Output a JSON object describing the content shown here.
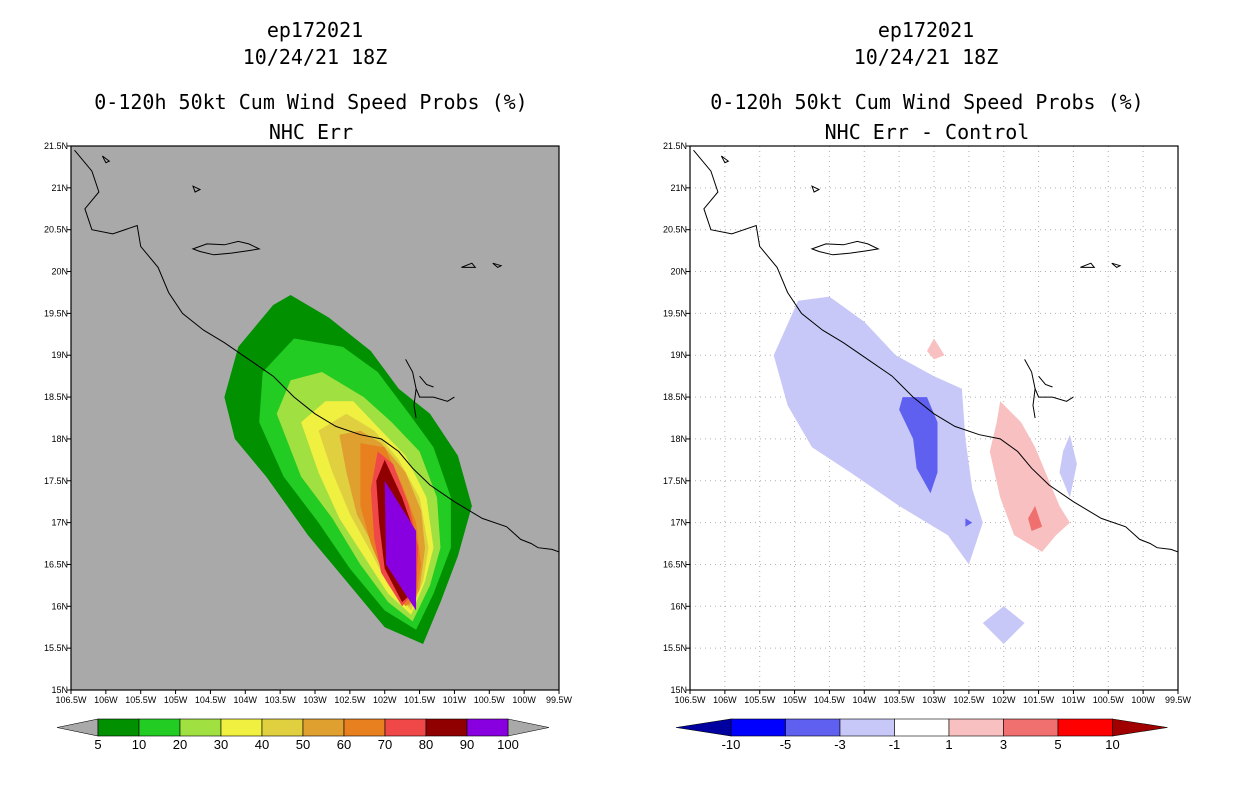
{
  "chart_data": [
    {
      "type": "contour-map",
      "title_lines": [
        "ep172021",
        "10/24/21 18Z",
        "0-120h 50kt Cum Wind Speed Probs (%)",
        "NHC Err"
      ],
      "x_ticks": [
        "106.5W",
        "106W",
        "105.5W",
        "105W",
        "104.5W",
        "104W",
        "103.5W",
        "103W",
        "102.5W",
        "102W",
        "101.5W",
        "101W",
        "100.5W",
        "100W",
        "99.5W"
      ],
      "y_ticks": [
        "15N",
        "15.5N",
        "16N",
        "16.5N",
        "17N",
        "17.5N",
        "18N",
        "18.5N",
        "19N",
        "19.5N",
        "20N",
        "20.5N",
        "21N",
        "21.5N"
      ],
      "xlim": [
        -106.5,
        -99.5
      ],
      "ylim": [
        15,
        21.5
      ],
      "background_color": "#a9a9a9",
      "grid": false,
      "levels": [
        "5",
        "10",
        "20",
        "30",
        "40",
        "50",
        "60",
        "70",
        "80",
        "90",
        "100"
      ],
      "colors": [
        "#009000",
        "#22cc22",
        "#a0e040",
        "#f0f040",
        "#e0d040",
        "#e0a030",
        "#e88020",
        "#f04848",
        "#900000",
        "#8800e0"
      ],
      "contours": [
        {
          "level": 5,
          "color": "#009000",
          "points": [
            [
              -104.3,
              18.5
            ],
            [
              -104.1,
              19.1
            ],
            [
              -103.6,
              19.6
            ],
            [
              -103.35,
              19.72
            ],
            [
              -102.8,
              19.45
            ],
            [
              -102.2,
              19.05
            ],
            [
              -101.8,
              18.6
            ],
            [
              -101.35,
              18.3
            ],
            [
              -100.95,
              17.8
            ],
            [
              -100.75,
              17.2
            ],
            [
              -100.95,
              16.6
            ],
            [
              -101.2,
              16.05
            ],
            [
              -101.45,
              15.55
            ],
            [
              -102.0,
              15.75
            ],
            [
              -102.6,
              16.35
            ],
            [
              -103.1,
              16.85
            ],
            [
              -103.7,
              17.55
            ],
            [
              -104.15,
              18.0
            ]
          ]
        },
        {
          "level": 10,
          "color": "#22cc22",
          "points": [
            [
              -103.8,
              18.2
            ],
            [
              -103.75,
              18.8
            ],
            [
              -103.3,
              19.2
            ],
            [
              -102.6,
              19.1
            ],
            [
              -102.1,
              18.8
            ],
            [
              -101.65,
              18.3
            ],
            [
              -101.3,
              17.9
            ],
            [
              -101.05,
              17.3
            ],
            [
              -101.05,
              16.7
            ],
            [
              -101.3,
              16.15
            ],
            [
              -101.55,
              15.72
            ],
            [
              -102.0,
              15.95
            ],
            [
              -102.5,
              16.45
            ],
            [
              -102.95,
              17.0
            ],
            [
              -103.45,
              17.55
            ]
          ]
        },
        {
          "level": 20,
          "color": "#a0e040",
          "points": [
            [
              -103.55,
              18.3
            ],
            [
              -103.35,
              18.7
            ],
            [
              -102.9,
              18.8
            ],
            [
              -102.3,
              18.5
            ],
            [
              -101.9,
              18.2
            ],
            [
              -101.5,
              17.85
            ],
            [
              -101.25,
              17.3
            ],
            [
              -101.2,
              16.7
            ],
            [
              -101.35,
              16.25
            ],
            [
              -101.6,
              15.82
            ],
            [
              -101.95,
              16.05
            ],
            [
              -102.35,
              16.5
            ],
            [
              -102.75,
              17.05
            ],
            [
              -103.2,
              17.55
            ]
          ]
        },
        {
          "level": 30,
          "color": "#f0f040",
          "points": [
            [
              -103.2,
              18.2
            ],
            [
              -102.85,
              18.45
            ],
            [
              -102.45,
              18.45
            ],
            [
              -102.05,
              18.1
            ],
            [
              -101.7,
              17.8
            ],
            [
              -101.4,
              17.3
            ],
            [
              -101.3,
              16.7
            ],
            [
              -101.42,
              16.3
            ],
            [
              -101.62,
              15.9
            ],
            [
              -101.95,
              16.15
            ],
            [
              -102.3,
              16.6
            ],
            [
              -102.65,
              17.05
            ],
            [
              -102.95,
              17.6
            ]
          ]
        },
        {
          "level": 40,
          "color": "#e0d040",
          "points": [
            [
              -102.95,
              18.1
            ],
            [
              -102.55,
              18.3
            ],
            [
              -102.15,
              18.1
            ],
            [
              -101.8,
              17.75
            ],
            [
              -101.5,
              17.3
            ],
            [
              -101.37,
              16.7
            ],
            [
              -101.45,
              16.3
            ],
            [
              -101.62,
              15.95
            ],
            [
              -101.95,
              16.25
            ],
            [
              -102.2,
              16.65
            ],
            [
              -102.5,
              17.1
            ],
            [
              -102.75,
              17.6
            ]
          ]
        },
        {
          "level": 50,
          "color": "#e0a030",
          "points": [
            [
              -102.65,
              18.05
            ],
            [
              -102.35,
              18.1
            ],
            [
              -102.05,
              17.95
            ],
            [
              -101.7,
              17.6
            ],
            [
              -101.48,
              17.15
            ],
            [
              -101.42,
              16.7
            ],
            [
              -101.5,
              16.2
            ],
            [
              -101.65,
              16.0
            ],
            [
              -101.95,
              16.3
            ],
            [
              -102.15,
              16.7
            ],
            [
              -102.4,
              17.1
            ],
            [
              -102.55,
              17.6
            ]
          ]
        },
        {
          "level": 60,
          "color": "#e88020",
          "points": [
            [
              -102.35,
              17.95
            ],
            [
              -102.0,
              17.9
            ],
            [
              -101.75,
              17.45
            ],
            [
              -101.55,
              17.0
            ],
            [
              -101.48,
              16.5
            ],
            [
              -101.55,
              16.1
            ],
            [
              -101.7,
              16.0
            ],
            [
              -102.0,
              16.35
            ],
            [
              -102.2,
              16.75
            ],
            [
              -102.35,
              17.2
            ]
          ]
        },
        {
          "level": 70,
          "color": "#f04848",
          "points": [
            [
              -102.1,
              17.85
            ],
            [
              -101.88,
              17.7
            ],
            [
              -101.65,
              17.2
            ],
            [
              -101.52,
              16.7
            ],
            [
              -101.55,
              16.2
            ],
            [
              -101.75,
              16.0
            ],
            [
              -102.05,
              16.4
            ],
            [
              -102.15,
              16.8
            ],
            [
              -102.2,
              17.4
            ]
          ]
        },
        {
          "level": 80,
          "color": "#900000",
          "points": [
            [
              -102.0,
              17.75
            ],
            [
              -101.75,
              17.3
            ],
            [
              -101.58,
              16.9
            ],
            [
              -101.55,
              16.4
            ],
            [
              -101.55,
              16.2
            ],
            [
              -101.75,
              16.05
            ],
            [
              -102.0,
              16.45
            ],
            [
              -102.08,
              17.0
            ],
            [
              -102.12,
              17.5
            ]
          ]
        },
        {
          "level": 90,
          "color": "#8800e0",
          "points": [
            [
              -102.0,
              17.5
            ],
            [
              -101.55,
              16.9
            ],
            [
              -101.55,
              15.95
            ],
            [
              -101.98,
              16.5
            ]
          ]
        }
      ],
      "colorbar": {
        "labels": [
          "5",
          "10",
          "20",
          "30",
          "40",
          "50",
          "60",
          "70",
          "80",
          "90",
          "100"
        ]
      }
    },
    {
      "type": "contour-map",
      "title_lines": [
        "ep172021",
        "10/24/21 18Z",
        "0-120h 50kt Cum Wind Speed Probs (%)",
        "NHC Err - Control"
      ],
      "x_ticks": [
        "106.5W",
        "106W",
        "105.5W",
        "105W",
        "104.5W",
        "104W",
        "103.5W",
        "103W",
        "102.5W",
        "102W",
        "101.5W",
        "101W",
        "100.5W",
        "100W",
        "99.5W"
      ],
      "y_ticks": [
        "15N",
        "15.5N",
        "16N",
        "16.5N",
        "17N",
        "17.5N",
        "18N",
        "18.5N",
        "19N",
        "19.5N",
        "20N",
        "20.5N",
        "21N",
        "21.5N"
      ],
      "xlim": [
        -106.5,
        -99.5
      ],
      "ylim": [
        15,
        21.5
      ],
      "background_color": "#ffffff",
      "grid": true,
      "levels": [
        "-10",
        "-5",
        "-3",
        "-1",
        "1",
        "3",
        "5",
        "10"
      ],
      "colors": [
        "#0000a0",
        "#0000ff",
        "#6060f0",
        "#c8c8f8",
        "#ffffff",
        "#f8c0c0",
        "#f07070",
        "#ff0000",
        "#a00000"
      ],
      "contours": [
        {
          "level": -1,
          "color": "#c8c8f8",
          "points": [
            [
              -105.3,
              19.0
            ],
            [
              -104.95,
              19.65
            ],
            [
              -104.5,
              19.7
            ],
            [
              -104.0,
              19.4
            ],
            [
              -103.55,
              19.0
            ],
            [
              -103.0,
              18.75
            ],
            [
              -102.6,
              18.6
            ],
            [
              -102.55,
              18.0
            ],
            [
              -102.45,
              17.4
            ],
            [
              -102.3,
              17.0
            ],
            [
              -102.5,
              16.5
            ],
            [
              -102.8,
              16.85
            ],
            [
              -103.5,
              17.2
            ],
            [
              -104.2,
              17.6
            ],
            [
              -104.75,
              17.9
            ],
            [
              -105.1,
              18.4
            ]
          ]
        },
        {
          "level": -3,
          "color": "#6060f0",
          "points": [
            [
              -103.45,
              18.5
            ],
            [
              -103.1,
              18.5
            ],
            [
              -102.95,
              18.2
            ],
            [
              -102.95,
              17.6
            ],
            [
              -103.05,
              17.35
            ],
            [
              -103.25,
              17.65
            ],
            [
              -103.3,
              18.0
            ],
            [
              -103.5,
              18.35
            ]
          ]
        },
        {
          "level": -3,
          "color": "#6060f0",
          "points": [
            [
              -102.55,
              17.05
            ],
            [
              -102.45,
              17.0
            ],
            [
              -102.55,
              16.95
            ]
          ]
        },
        {
          "level": -1,
          "color": "#c8c8f8",
          "points": [
            [
              -102.0,
              16.0
            ],
            [
              -101.7,
              15.8
            ],
            [
              -102.0,
              15.55
            ],
            [
              -102.3,
              15.8
            ]
          ]
        },
        {
          "level": -1,
          "color": "#c8c8f8",
          "points": [
            [
              -101.05,
              18.05
            ],
            [
              -100.95,
              17.7
            ],
            [
              -101.05,
              17.3
            ],
            [
              -101.2,
              17.6
            ],
            [
              -101.15,
              17.85
            ]
          ]
        },
        {
          "level": 1,
          "color": "#f8c0c0",
          "points": [
            [
              -102.05,
              18.45
            ],
            [
              -101.75,
              18.2
            ],
            [
              -101.55,
              17.9
            ],
            [
              -101.35,
              17.5
            ],
            [
              -101.2,
              17.2
            ],
            [
              -101.05,
              17.0
            ],
            [
              -101.25,
              16.85
            ],
            [
              -101.45,
              16.65
            ],
            [
              -101.85,
              16.85
            ],
            [
              -102.05,
              17.3
            ],
            [
              -102.2,
              17.85
            ],
            [
              -102.1,
              18.2
            ]
          ]
        },
        {
          "level": 3,
          "color": "#f07070",
          "points": [
            [
              -101.55,
              17.2
            ],
            [
              -101.45,
              16.95
            ],
            [
              -101.6,
              16.9
            ],
            [
              -101.65,
              17.05
            ]
          ]
        },
        {
          "level": 1,
          "color": "#f8c0c0",
          "points": [
            [
              -103.0,
              19.2
            ],
            [
              -102.85,
              19.0
            ],
            [
              -103.0,
              18.95
            ],
            [
              -103.1,
              19.05
            ]
          ]
        }
      ],
      "colorbar": {
        "labels": [
          "-10",
          "-5",
          "-3",
          "-1",
          "1",
          "3",
          "5",
          "10"
        ]
      }
    }
  ]
}
